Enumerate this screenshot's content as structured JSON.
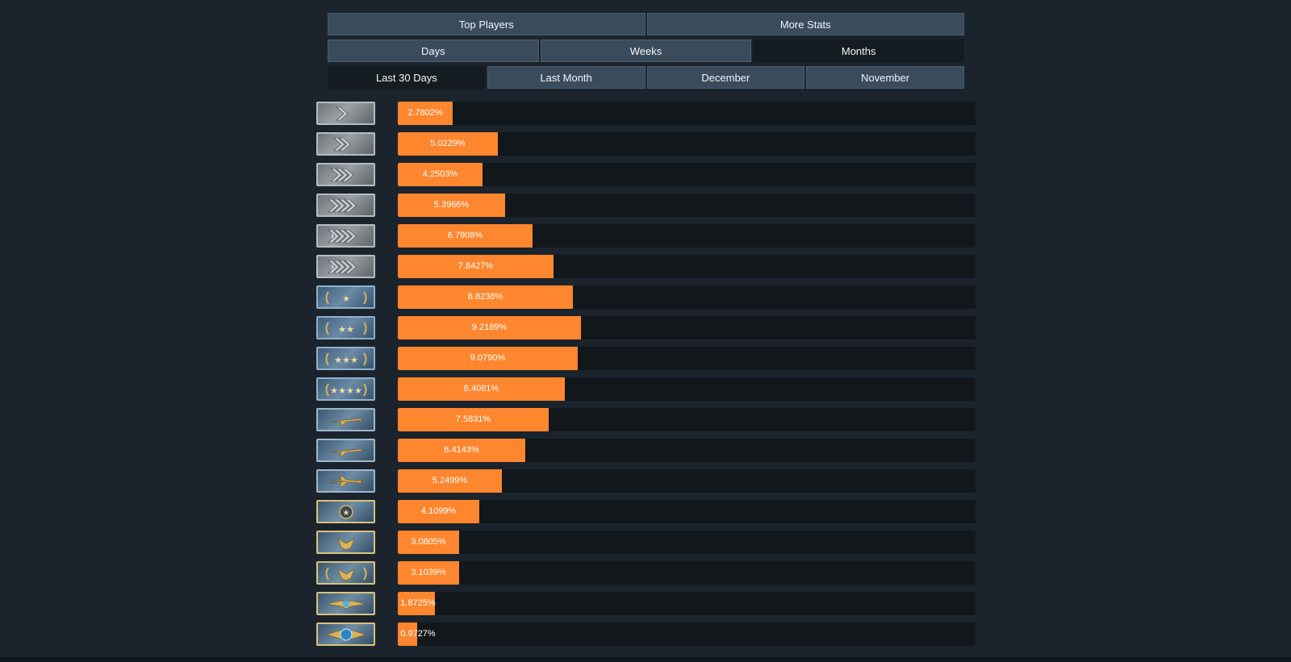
{
  "tabs": {
    "row1": [
      {
        "label": "Top Players",
        "active": false
      },
      {
        "label": "More Stats",
        "active": false
      }
    ],
    "row2": [
      {
        "label": "Days",
        "active": false
      },
      {
        "label": "Weeks",
        "active": false
      },
      {
        "label": "Months",
        "active": true
      }
    ],
    "row3": [
      {
        "label": "Last 30 Days",
        "active": true
      },
      {
        "label": "Last Month",
        "active": false
      },
      {
        "label": "December",
        "active": false
      },
      {
        "label": "November",
        "active": false
      }
    ]
  },
  "colors": {
    "bar": "#fd862e",
    "track": "#12171c",
    "background": "#1b242c"
  },
  "ranks": [
    {
      "badge_icon": "silver-1-chevron-icon",
      "tier": "silver",
      "value": 2.7802,
      "label": "2.7802%"
    },
    {
      "badge_icon": "silver-2-chevron-icon",
      "tier": "silver",
      "value": 5.0229,
      "label": "5.0229%"
    },
    {
      "badge_icon": "silver-3-chevron-icon",
      "tier": "silver",
      "value": 4.2503,
      "label": "4.2503%"
    },
    {
      "badge_icon": "silver-4-chevron-icon",
      "tier": "silver",
      "value": 5.3966,
      "label": "5.3966%"
    },
    {
      "badge_icon": "silver-elite-chevron-icon",
      "tier": "silver",
      "value": 6.7908,
      "label": "6.7908%"
    },
    {
      "badge_icon": "silver-elite-master-chevron-icon",
      "tier": "silver",
      "value": 7.8427,
      "label": "7.8427%"
    },
    {
      "badge_icon": "gold-nova-1-star-icon",
      "tier": "nova",
      "value": 8.8238,
      "label": "8.8238%"
    },
    {
      "badge_icon": "gold-nova-2-star-icon",
      "tier": "nova",
      "value": 9.2189,
      "label": "9.2189%"
    },
    {
      "badge_icon": "gold-nova-3-star-icon",
      "tier": "nova",
      "value": 9.079,
      "label": "9.0790%"
    },
    {
      "badge_icon": "gold-nova-master-star-icon",
      "tier": "nova",
      "value": 8.4081,
      "label": "8.4081%"
    },
    {
      "badge_icon": "master-guardian-1-rifle-icon",
      "tier": "mg",
      "value": 7.5831,
      "label": "7.5831%"
    },
    {
      "badge_icon": "master-guardian-2-rifle-icon",
      "tier": "mg",
      "value": 6.4143,
      "label": "6.4143%"
    },
    {
      "badge_icon": "master-guardian-elite-crossed-rifles-icon",
      "tier": "mg",
      "value": 5.2499,
      "label": "5.2499%"
    },
    {
      "badge_icon": "distinguished-master-guardian-star-icon",
      "tier": "gold",
      "value": 4.1099,
      "label": "4.1099%"
    },
    {
      "badge_icon": "legendary-eagle-icon",
      "tier": "gold",
      "value": 3.0805,
      "label": "3.0805%"
    },
    {
      "badge_icon": "legendary-eagle-master-icon",
      "tier": "gold",
      "value": 3.1039,
      "label": "3.1039%"
    },
    {
      "badge_icon": "supreme-master-first-class-icon",
      "tier": "gold",
      "value": 1.8725,
      "label": "1.8725%"
    },
    {
      "badge_icon": "global-elite-globe-icon",
      "tier": "gold",
      "value": 0.9727,
      "label": "0.9727%"
    }
  ]
}
